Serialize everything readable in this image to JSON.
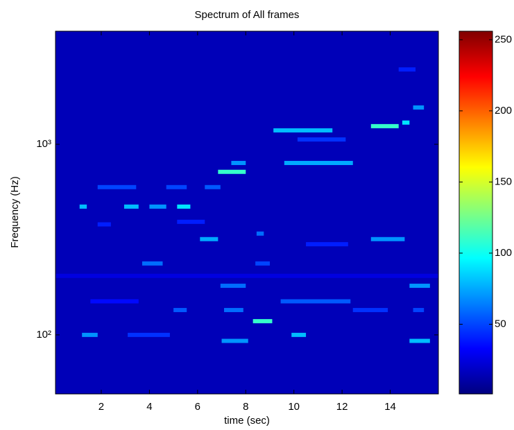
{
  "chart_data": {
    "type": "spectrogram",
    "title": "Spectrum of All frames",
    "x_label": "time (sec)",
    "y_label": "Frequency (Hz)",
    "xlim": [
      0.1,
      16
    ],
    "xticks": [
      2,
      4,
      6,
      8,
      10,
      12,
      14
    ],
    "ylim": [
      49,
      3920
    ],
    "y_scale": "log",
    "yticks": [
      {
        "value": 100,
        "label": "10²"
      },
      {
        "value": 1000,
        "label": "10³"
      }
    ],
    "colormap": "jet",
    "clim": [
      1,
      256
    ],
    "cticks": [
      50,
      100,
      150,
      200,
      250
    ],
    "background": 15,
    "segments": [
      {
        "t0": 1.2,
        "t1": 1.85,
        "freq": 100,
        "value": 70
      },
      {
        "t0": 3.1,
        "t1": 4.85,
        "freq": 100,
        "value": 45
      },
      {
        "t0": 7.0,
        "t1": 8.1,
        "freq": 93,
        "value": 70
      },
      {
        "t0": 8.3,
        "t1": 9.1,
        "freq": 118,
        "value": 110
      },
      {
        "t0": 9.9,
        "t1": 10.5,
        "freq": 100,
        "value": 80
      },
      {
        "t0": 14.8,
        "t1": 15.65,
        "freq": 93,
        "value": 80
      },
      {
        "t0": 14.8,
        "t1": 15.65,
        "freq": 181,
        "value": 70
      },
      {
        "t0": 6.95,
        "t1": 8.0,
        "freq": 181,
        "value": 60
      },
      {
        "t0": 9.45,
        "t1": 12.35,
        "freq": 150,
        "value": 55
      },
      {
        "t0": 5.0,
        "t1": 5.55,
        "freq": 135,
        "value": 55
      },
      {
        "t0": 7.1,
        "t1": 7.9,
        "freq": 135,
        "value": 60
      },
      {
        "t0": 12.45,
        "t1": 13.9,
        "freq": 135,
        "value": 45
      },
      {
        "t0": 14.95,
        "t1": 15.4,
        "freq": 135,
        "value": 50
      },
      {
        "t0": 1.55,
        "t1": 3.55,
        "freq": 150,
        "value": 35
      },
      {
        "t0": 3.7,
        "t1": 4.55,
        "freq": 237,
        "value": 60
      },
      {
        "t0": 8.4,
        "t1": 9.0,
        "freq": 237,
        "value": 50
      },
      {
        "t0": 6.1,
        "t1": 6.85,
        "freq": 318,
        "value": 75
      },
      {
        "t0": 8.45,
        "t1": 8.75,
        "freq": 340,
        "value": 60
      },
      {
        "t0": 13.2,
        "t1": 14.6,
        "freq": 318,
        "value": 70
      },
      {
        "t0": 10.5,
        "t1": 12.25,
        "freq": 299,
        "value": 40
      },
      {
        "t0": 1.1,
        "t1": 1.4,
        "freq": 471,
        "value": 80
      },
      {
        "t0": 2.95,
        "t1": 3.55,
        "freq": 471,
        "value": 80
      },
      {
        "t0": 4.0,
        "t1": 4.7,
        "freq": 471,
        "value": 70
      },
      {
        "t0": 5.15,
        "t1": 5.7,
        "freq": 471,
        "value": 90
      },
      {
        "t0": 1.85,
        "t1": 3.45,
        "freq": 596,
        "value": 50
      },
      {
        "t0": 4.7,
        "t1": 5.55,
        "freq": 596,
        "value": 50
      },
      {
        "t0": 6.3,
        "t1": 6.95,
        "freq": 596,
        "value": 55
      },
      {
        "t0": 6.85,
        "t1": 8.0,
        "freq": 717,
        "value": 110
      },
      {
        "t0": 7.4,
        "t1": 8.0,
        "freq": 798,
        "value": 70
      },
      {
        "t0": 9.15,
        "t1": 11.6,
        "freq": 1183,
        "value": 80
      },
      {
        "t0": 9.6,
        "t1": 12.45,
        "freq": 798,
        "value": 75
      },
      {
        "t0": 10.15,
        "t1": 12.15,
        "freq": 1060,
        "value": 45
      },
      {
        "t0": 13.2,
        "t1": 14.35,
        "freq": 1245,
        "value": 110
      },
      {
        "t0": 14.5,
        "t1": 14.8,
        "freq": 1300,
        "value": 90
      },
      {
        "t0": 14.95,
        "t1": 15.4,
        "freq": 1560,
        "value": 70
      },
      {
        "t0": 14.35,
        "t1": 15.05,
        "freq": 2470,
        "value": 40
      },
      {
        "t0": 1.85,
        "t1": 2.4,
        "freq": 380,
        "value": 40
      },
      {
        "t0": 5.15,
        "t1": 6.3,
        "freq": 392,
        "value": 40
      },
      {
        "t0": 0.1,
        "t1": 16,
        "freq": 204,
        "value": 25
      }
    ]
  }
}
